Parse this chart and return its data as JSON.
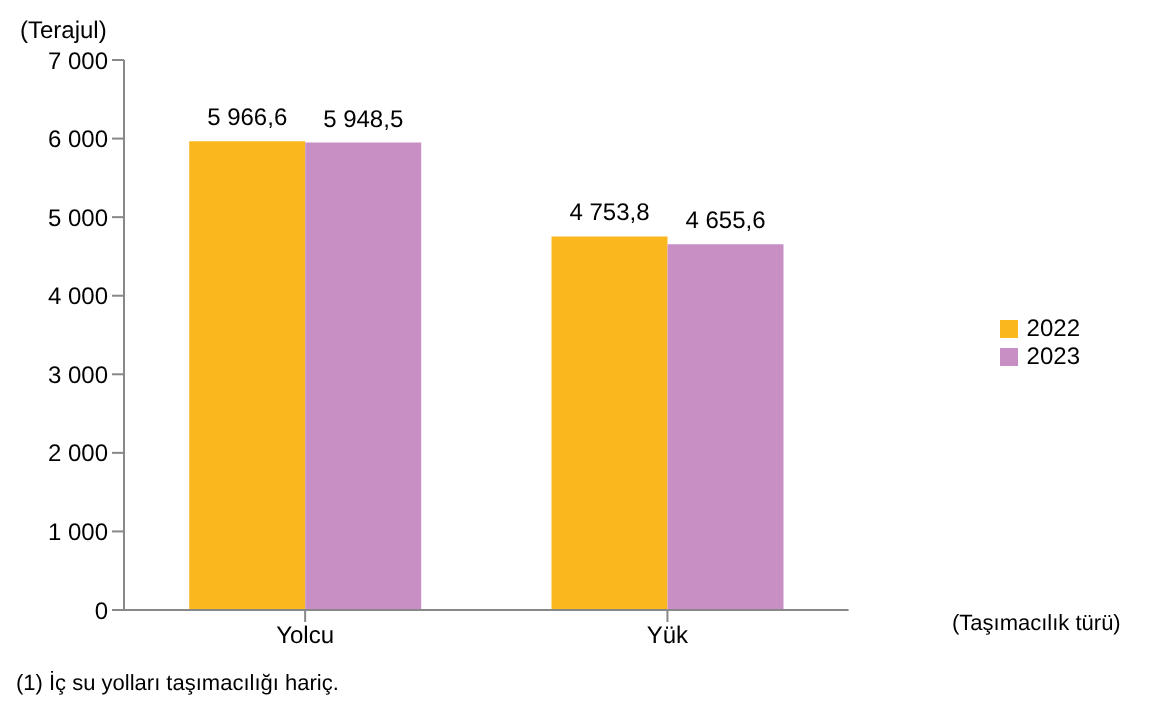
{
  "chart_data": {
    "type": "bar",
    "ylabel": "(Terajul)",
    "xlabel": "(Taşımacılık türü)",
    "categories": [
      "Yolcu",
      "Yük"
    ],
    "series": [
      {
        "name": "2022",
        "color": "#fbb81e",
        "values": [
          5966.6,
          4753.8
        ],
        "value_labels": [
          "5 966,6",
          "4 753,8"
        ]
      },
      {
        "name": "2023",
        "color": "#c88fc4",
        "values": [
          5948.5,
          4655.6
        ],
        "value_labels": [
          "5 948,5",
          "4 655,6"
        ]
      }
    ],
    "ylim": [
      0,
      7000
    ],
    "yticks": [
      0,
      {
        "value": 1000,
        "label": "1 000"
      },
      {
        "value": 2000,
        "label": "2 000"
      },
      {
        "value": 3000,
        "label": "3 000"
      },
      {
        "value": 4000,
        "label": "4 000"
      },
      {
        "value": 5000,
        "label": "5 000"
      },
      {
        "value": 6000,
        "label": "6 000"
      },
      {
        "value": 7000,
        "label": "7 000"
      }
    ],
    "grid": false,
    "legend": "right",
    "annotations": [
      "(1) İç su yolları taşımacılığı hariç."
    ]
  }
}
